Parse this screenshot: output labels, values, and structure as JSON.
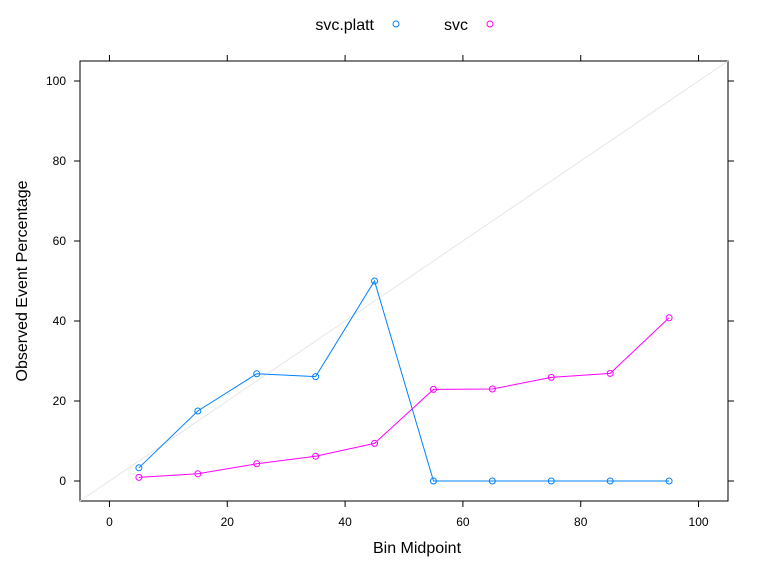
{
  "chart_data": {
    "type": "line",
    "xlabel": "Bin Midpoint",
    "ylabel": "Observed Event Percentage",
    "xlim": [
      -5,
      105
    ],
    "ylim": [
      -5,
      105
    ],
    "xticks": [
      0,
      20,
      40,
      60,
      80,
      100
    ],
    "yticks": [
      0,
      20,
      40,
      60,
      80,
      100
    ],
    "x": [
      5,
      15,
      25,
      35,
      45,
      55,
      65,
      75,
      85,
      95
    ],
    "reference_line": "diagonal",
    "legend_position": "top",
    "series": [
      {
        "name": "svc.platt",
        "color": "#0080ff",
        "values": [
          3.3,
          17.5,
          26.8,
          26.1,
          50,
          0,
          0,
          0,
          0,
          0
        ]
      },
      {
        "name": "svc",
        "color": "#ff00ff",
        "values": [
          0.9,
          1.8,
          4.3,
          6.2,
          9.4,
          22.9,
          23.0,
          25.9,
          26.9,
          40.8
        ]
      }
    ]
  }
}
